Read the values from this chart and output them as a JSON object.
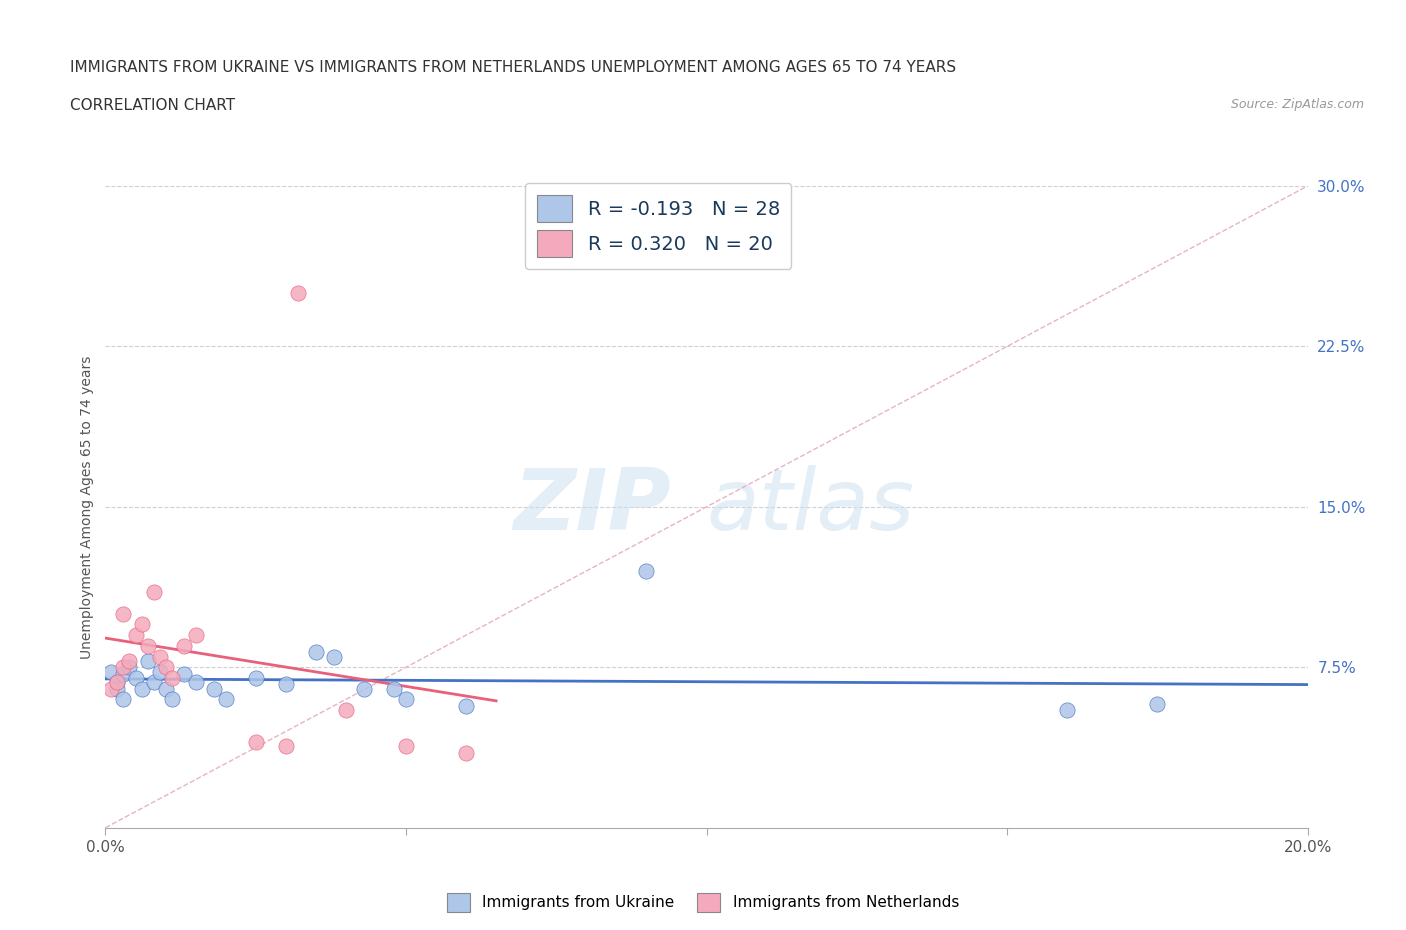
{
  "title_line1": "IMMIGRANTS FROM UKRAINE VS IMMIGRANTS FROM NETHERLANDS UNEMPLOYMENT AMONG AGES 65 TO 74 YEARS",
  "title_line2": "CORRELATION CHART",
  "source_text": "Source: ZipAtlas.com",
  "ylabel": "Unemployment Among Ages 65 to 74 years",
  "xlim": [
    0.0,
    0.2
  ],
  "ylim": [
    0.0,
    0.3
  ],
  "xticks": [
    0.0,
    0.05,
    0.1,
    0.15,
    0.2
  ],
  "yticks_right": [
    0.0,
    0.075,
    0.15,
    0.225,
    0.3
  ],
  "ytick_labels_right": [
    "",
    "7.5%",
    "15.0%",
    "22.5%",
    "30.0%"
  ],
  "xtick_labels": [
    "0.0%",
    "",
    "",
    "",
    "20.0%"
  ],
  "ukraine_x": [
    0.001,
    0.002,
    0.002,
    0.003,
    0.003,
    0.004,
    0.005,
    0.006,
    0.007,
    0.008,
    0.009,
    0.01,
    0.011,
    0.013,
    0.015,
    0.018,
    0.02,
    0.025,
    0.03,
    0.035,
    0.038,
    0.043,
    0.048,
    0.05,
    0.06,
    0.09,
    0.16,
    0.175
  ],
  "ukraine_y": [
    0.073,
    0.068,
    0.065,
    0.072,
    0.06,
    0.075,
    0.07,
    0.065,
    0.078,
    0.068,
    0.073,
    0.065,
    0.06,
    0.072,
    0.068,
    0.065,
    0.06,
    0.07,
    0.067,
    0.082,
    0.08,
    0.065,
    0.065,
    0.06,
    0.057,
    0.12,
    0.055,
    0.058
  ],
  "netherlands_x": [
    0.001,
    0.002,
    0.003,
    0.003,
    0.004,
    0.005,
    0.006,
    0.007,
    0.008,
    0.009,
    0.01,
    0.011,
    0.013,
    0.015,
    0.025,
    0.03,
    0.032,
    0.04,
    0.05,
    0.06
  ],
  "netherlands_y": [
    0.065,
    0.068,
    0.075,
    0.1,
    0.078,
    0.09,
    0.095,
    0.085,
    0.11,
    0.08,
    0.075,
    0.07,
    0.085,
    0.09,
    0.04,
    0.038,
    0.25,
    0.055,
    0.038,
    0.035
  ],
  "ukraine_color": "#aec6e8",
  "netherlands_color": "#f4aabc",
  "ukraine_line_color": "#4472c4",
  "netherlands_line_color": "#e8607a",
  "trendline_ref_color": "#e8b4c0",
  "ukraine_R": -0.193,
  "ukraine_N": 28,
  "netherlands_R": 0.32,
  "netherlands_N": 20,
  "watermark_zip": "ZIP",
  "watermark_atlas": "atlas",
  "background_color": "#ffffff",
  "grid_color": "#d0d0d0"
}
